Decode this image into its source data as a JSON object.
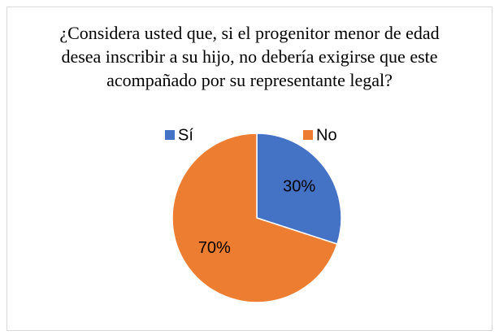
{
  "chart_data": {
    "type": "pie",
    "title": "¿Considera usted que, si el progenitor menor de edad desea inscribir a su hijo, no debería exigirse que este acompañado por su representante legal?",
    "categories": [
      "Sí",
      "No"
    ],
    "values": [
      30,
      70
    ],
    "value_labels": [
      "30%",
      "70%"
    ],
    "colors": [
      "#4472c4",
      "#ed7d31"
    ],
    "legend": "top"
  }
}
